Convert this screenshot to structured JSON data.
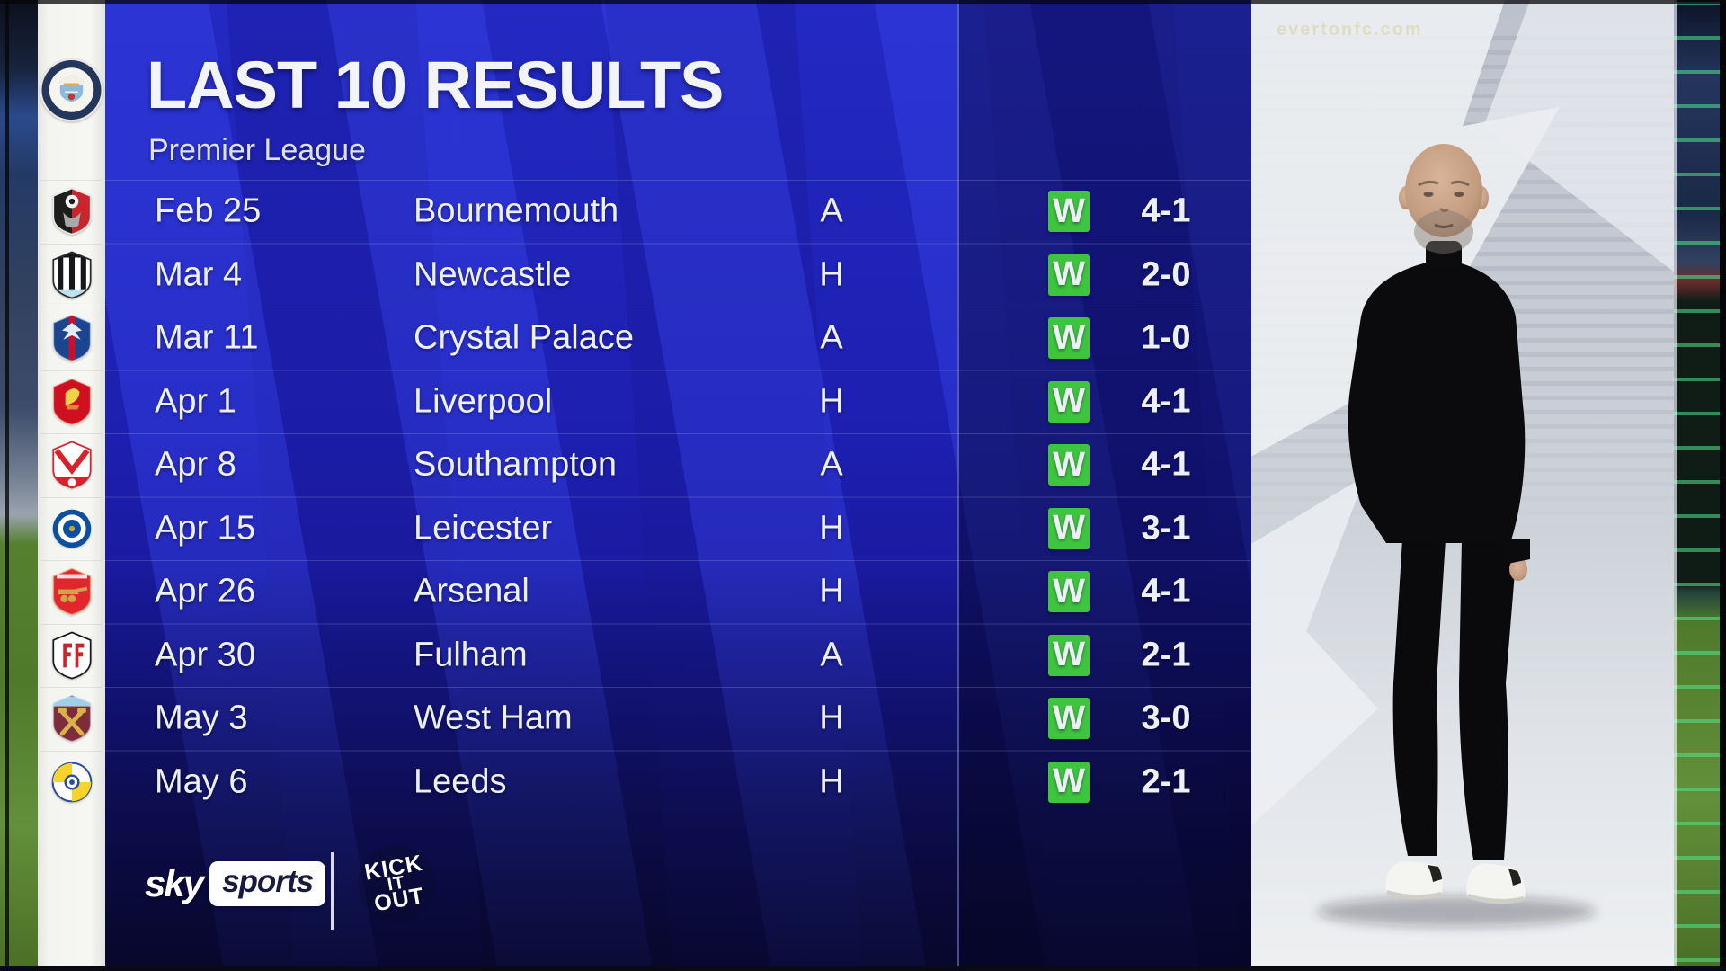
{
  "header": {
    "title": "LAST 10 RESULTS",
    "subtitle": "Premier League"
  },
  "club": {
    "name": "Manchester City",
    "badge": {
      "shape": "city",
      "colors": [
        "#24365c",
        "#8cbade",
        "#d9b24a"
      ]
    }
  },
  "results": {
    "rows": [
      {
        "date": "Feb 25",
        "opponent": "Bournemouth",
        "venue": "A",
        "result": "W",
        "score": "4-1",
        "badge": {
          "shape": "halves",
          "colors": [
            "#1d1d1b",
            "#c8252c"
          ]
        }
      },
      {
        "date": "Mar 4",
        "opponent": "Newcastle",
        "venue": "H",
        "result": "W",
        "score": "2-0",
        "badge": {
          "shape": "stripes",
          "colors": [
            "#17171a",
            "#bfe0ee"
          ]
        }
      },
      {
        "date": "Mar 11",
        "opponent": "Crystal Palace",
        "venue": "A",
        "result": "W",
        "score": "1-0",
        "badge": {
          "shape": "palace",
          "colors": [
            "#1b458f",
            "#c4122e"
          ]
        }
      },
      {
        "date": "Apr 1",
        "opponent": "Liverpool",
        "venue": "H",
        "result": "W",
        "score": "4-1",
        "badge": {
          "shape": "liver",
          "colors": [
            "#cf1020",
            "#f2d24b"
          ]
        }
      },
      {
        "date": "Apr 8",
        "opponent": "Southampton",
        "venue": "A",
        "result": "W",
        "score": "4-1",
        "badge": {
          "shape": "saints",
          "colors": [
            "#d7222b",
            "#ffffff"
          ]
        }
      },
      {
        "date": "Apr 15",
        "opponent": "Leicester",
        "venue": "H",
        "result": "W",
        "score": "3-1",
        "badge": {
          "shape": "ring",
          "colors": [
            "#0a4fa0",
            "#ffffff",
            "#c8a02c"
          ]
        }
      },
      {
        "date": "Apr 26",
        "opponent": "Arsenal",
        "venue": "H",
        "result": "W",
        "score": "4-1",
        "badge": {
          "shape": "cannon",
          "colors": [
            "#e3262d",
            "#cfa44e"
          ]
        }
      },
      {
        "date": "Apr 30",
        "opponent": "Fulham",
        "venue": "A",
        "result": "W",
        "score": "2-1",
        "badge": {
          "shape": "fulham",
          "colors": [
            "#17171a",
            "#c8252c"
          ]
        }
      },
      {
        "date": "May 3",
        "opponent": "West Ham",
        "venue": "H",
        "result": "W",
        "score": "3-0",
        "badge": {
          "shape": "hammers",
          "colors": [
            "#7c2c3b",
            "#9fd0e8",
            "#d9b24a"
          ]
        }
      },
      {
        "date": "May 6",
        "opponent": "Leeds",
        "venue": "H",
        "result": "W",
        "score": "2-1",
        "badge": {
          "shape": "leeds",
          "colors": [
            "#f7d42a",
            "#2a4e9a"
          ]
        }
      }
    ]
  },
  "footer": {
    "sky_word": "sky",
    "sports_word": "sports",
    "kick_it_out": {
      "words": [
        "KICK",
        "IT",
        "OUT"
      ]
    }
  },
  "photo_panel": {
    "stadium_ad_text": "evertonfc.com"
  },
  "colors": {
    "green": "#3ec43e",
    "panel_blue": "#1d1fb0",
    "stripe_blue": "#2a36d6",
    "dark_navy": "#0c0c44",
    "white_strip": "#f4f4f1"
  }
}
